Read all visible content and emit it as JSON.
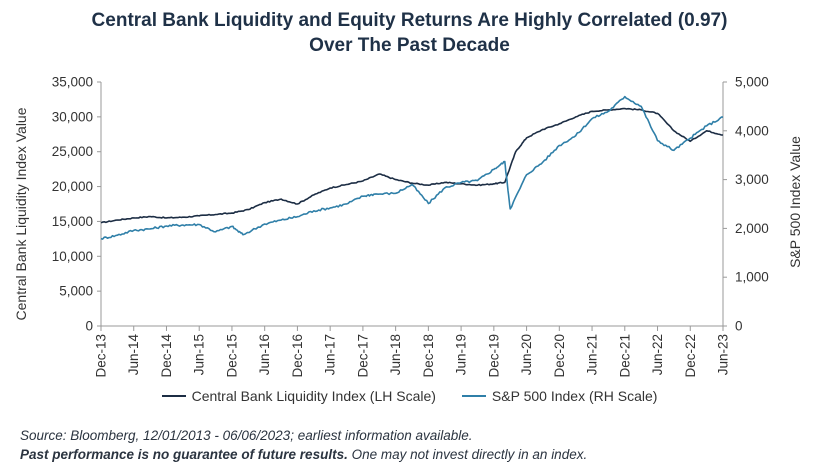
{
  "title_line1": "Central Bank Liquidity and Equity Returns Are Highly Correlated (0.97)",
  "title_line2": "Over The Past Decade",
  "footer": {
    "source": "Source: Bloomberg, 12/01/2013 - 06/06/2023; earliest information available.",
    "disclaimer_bold": "Past performance is no guarantee of future results.",
    "disclaimer_rest": " One may not invest directly in an index."
  },
  "colors": {
    "liquidity": "#1c2d44",
    "sp500": "#2f7fa8",
    "axis": "#999999"
  },
  "chart_data": {
    "type": "line",
    "title": "Central Bank Liquidity and Equity Returns Are Highly Correlated (0.97) Over The Past Decade",
    "ylabel_left": "Central Bank Liquidity Index Value",
    "ylabel_right": "S&P 500 Index Value",
    "ylim_left": [
      0,
      35000
    ],
    "ylim_right": [
      0,
      5000
    ],
    "yticks_left": [
      "0",
      "5,000",
      "10,000",
      "15,000",
      "20,000",
      "25,000",
      "30,000",
      "35,000"
    ],
    "yticks_right": [
      "0",
      "1,000",
      "2,000",
      "3,000",
      "4,000",
      "5,000"
    ],
    "xticks": [
      "Dec-13",
      "Jun-14",
      "Dec-14",
      "Jun-15",
      "Dec-15",
      "Jun-16",
      "Dec-16",
      "Jun-17",
      "Dec-17",
      "Jun-18",
      "Dec-18",
      "Jun-19",
      "Dec-19",
      "Jun-20",
      "Dec-20",
      "Jun-21",
      "Dec-21",
      "Jun-22",
      "Dec-22",
      "Jun-23"
    ],
    "grid": false,
    "legend_position": "bottom",
    "series": [
      {
        "name": "Central Bank Liquidity Index (LH Scale)",
        "axis": "left",
        "x": [
          "2013-12",
          "2014-03",
          "2014-06",
          "2014-09",
          "2014-12",
          "2015-03",
          "2015-06",
          "2015-09",
          "2015-12",
          "2016-03",
          "2016-06",
          "2016-09",
          "2016-12",
          "2017-03",
          "2017-06",
          "2017-09",
          "2017-12",
          "2018-03",
          "2018-06",
          "2018-09",
          "2018-12",
          "2019-03",
          "2019-06",
          "2019-09",
          "2019-12",
          "2020-02",
          "2020-04",
          "2020-06",
          "2020-09",
          "2020-12",
          "2021-03",
          "2021-06",
          "2021-09",
          "2021-12",
          "2022-03",
          "2022-06",
          "2022-09",
          "2022-12",
          "2023-03",
          "2023-06"
        ],
        "values": [
          14800,
          15200,
          15500,
          15700,
          15500,
          15600,
          15800,
          16000,
          16200,
          16700,
          17700,
          18200,
          17500,
          18800,
          19800,
          20300,
          20800,
          21800,
          21000,
          20500,
          20200,
          20600,
          20400,
          20200,
          20400,
          20600,
          25000,
          27000,
          28200,
          29000,
          30000,
          30800,
          31000,
          31200,
          31000,
          30500,
          28000,
          26500,
          28000,
          27400
        ]
      },
      {
        "name": "S&P 500 Index (RH Scale)",
        "axis": "right",
        "x": [
          "2013-12",
          "2014-03",
          "2014-06",
          "2014-09",
          "2014-12",
          "2015-03",
          "2015-06",
          "2015-09",
          "2015-12",
          "2016-02",
          "2016-06",
          "2016-09",
          "2016-12",
          "2017-03",
          "2017-06",
          "2017-09",
          "2017-12",
          "2018-02",
          "2018-06",
          "2018-09",
          "2018-12",
          "2019-03",
          "2019-06",
          "2019-09",
          "2019-12",
          "2020-02",
          "2020-03",
          "2020-06",
          "2020-09",
          "2020-12",
          "2021-03",
          "2021-06",
          "2021-09",
          "2021-12",
          "2022-03",
          "2022-06",
          "2022-09",
          "2022-12",
          "2023-03",
          "2023-06"
        ],
        "values": [
          1790,
          1860,
          1960,
          1990,
          2050,
          2070,
          2080,
          1930,
          2040,
          1870,
          2090,
          2170,
          2240,
          2360,
          2420,
          2500,
          2660,
          2700,
          2720,
          2900,
          2510,
          2830,
          2940,
          2980,
          3210,
          3370,
          2400,
          3100,
          3360,
          3700,
          3900,
          4250,
          4400,
          4700,
          4500,
          3800,
          3600,
          3850,
          4100,
          4280
        ]
      }
    ]
  }
}
